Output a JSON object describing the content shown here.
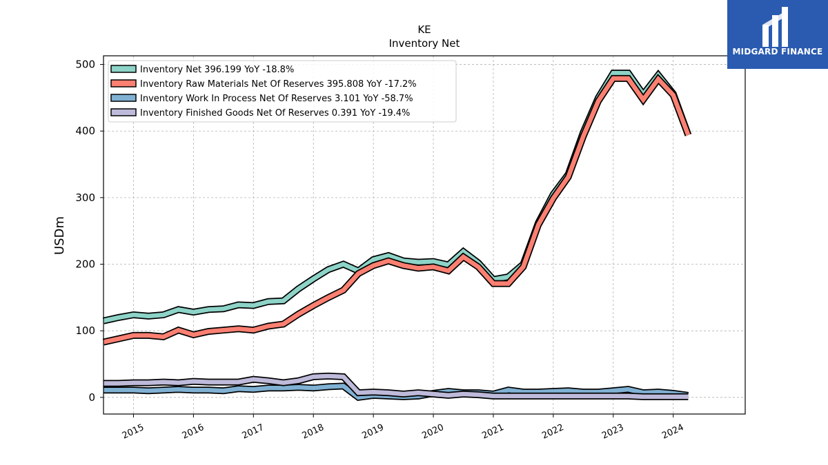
{
  "chart_data": {
    "type": "line",
    "title": "KE",
    "subtitle": "Inventory Net",
    "xlabel": "",
    "ylabel": "USDm",
    "x_ticks": [
      "2015",
      "2016",
      "2017",
      "2018",
      "2019",
      "2020",
      "2021",
      "2022",
      "2023",
      "2024"
    ],
    "y_ticks": [
      "0",
      "100",
      "200",
      "300",
      "400",
      "500"
    ],
    "xlim": [
      2014.5,
      2025.2
    ],
    "ylim": [
      -25,
      513
    ],
    "grid": true,
    "legend_position": "top-left",
    "x": [
      2014.5,
      2014.75,
      2015.0,
      2015.25,
      2015.5,
      2015.75,
      2016.0,
      2016.25,
      2016.5,
      2016.75,
      2017.0,
      2017.25,
      2017.5,
      2017.75,
      2018.0,
      2018.25,
      2018.5,
      2018.75,
      2019.0,
      2019.25,
      2019.5,
      2019.75,
      2020.0,
      2020.25,
      2020.5,
      2020.75,
      2021.0,
      2021.25,
      2021.5,
      2021.75,
      2022.0,
      2022.25,
      2022.5,
      2022.75,
      2023.0,
      2023.25,
      2023.5,
      2023.75,
      2024.0,
      2024.25
    ],
    "series": [
      {
        "name": "Inventory Net  396.199 YoY -18.8%",
        "color": "#8dd3c7",
        "values": [
          115,
          120,
          124,
          122,
          124,
          132,
          128,
          132,
          133,
          139,
          138,
          144,
          145,
          163,
          178,
          192,
          200,
          190,
          207,
          213,
          205,
          203,
          204,
          199,
          219,
          202,
          177,
          181,
          200,
          262,
          305,
          335,
          398,
          450,
          487,
          487,
          455,
          484,
          456,
          394
        ]
      },
      {
        "name": "Inventory Raw Materials Net Of Reserves  395.808 YoY -17.2%",
        "color": "#fb8072",
        "values": [
          83,
          88,
          93,
          93,
          91,
          101,
          94,
          99,
          101,
          103,
          101,
          107,
          110,
          125,
          138,
          150,
          161,
          186,
          198,
          205,
          198,
          194,
          196,
          190,
          211,
          196,
          171,
          171,
          196,
          259,
          299,
          331,
          392,
          445,
          479,
          479,
          447,
          478,
          454,
          394
        ]
      },
      {
        "name": "Inventory Work In Process Net Of Reserves  3.101 YoY -58.7%",
        "color": "#80b1d3",
        "values": [
          11,
          11,
          11,
          10,
          11,
          12,
          11,
          11,
          10,
          13,
          12,
          14,
          14,
          15,
          14,
          16,
          17,
          0,
          3,
          2,
          1,
          2,
          6,
          9,
          7,
          7,
          5,
          11,
          8,
          8,
          9,
          10,
          8,
          8,
          10,
          12,
          7,
          8,
          6,
          3
        ]
      },
      {
        "name": "Inventory Finished Goods Net Of Reserves  0.391 YoY -19.4%",
        "color": "#bebada",
        "values": [
          21,
          21,
          22,
          22,
          23,
          22,
          24,
          23,
          23,
          23,
          27,
          25,
          22,
          25,
          31,
          32,
          31,
          7,
          8,
          7,
          5,
          7,
          5,
          3,
          5,
          4,
          2,
          2,
          2,
          2,
          2,
          2,
          2,
          2,
          2,
          2,
          1,
          1,
          1,
          1
        ]
      }
    ]
  },
  "logo": {
    "text": "MIDGARD FINANCE",
    "name": "midgard-finance-logo"
  }
}
